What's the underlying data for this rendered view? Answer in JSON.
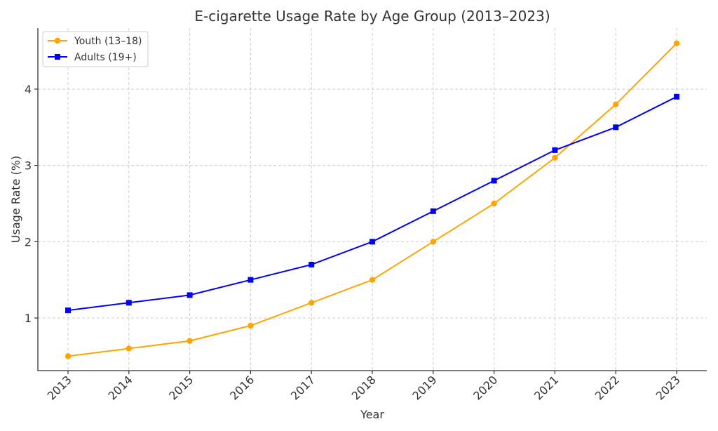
{
  "chart_data": {
    "type": "line",
    "title": "E-cigarette Usage Rate by Age Group (2013–2023)",
    "xlabel": "Year",
    "ylabel": "Usage Rate (%)",
    "categories": [
      "2013",
      "2014",
      "2015",
      "2016",
      "2017",
      "2018",
      "2019",
      "2020",
      "2021",
      "2022",
      "2023"
    ],
    "yticks": [
      "1",
      "2",
      "3",
      "4"
    ],
    "ylim": [
      0.31,
      4.8
    ],
    "grid": true,
    "legend_position": "top-left",
    "series": [
      {
        "name": "Youth (13–18)",
        "color": "#FFA500",
        "marker": "circle",
        "values": [
          0.5,
          0.6,
          0.7,
          0.9,
          1.2,
          1.5,
          2.0,
          2.5,
          3.1,
          3.8,
          4.6
        ]
      },
      {
        "name": "Adults (19+)",
        "color": "#0000FF",
        "marker": "square",
        "values": [
          1.1,
          1.2,
          1.3,
          1.5,
          1.7,
          2.0,
          2.4,
          2.8,
          3.2,
          3.5,
          3.9
        ]
      }
    ]
  }
}
